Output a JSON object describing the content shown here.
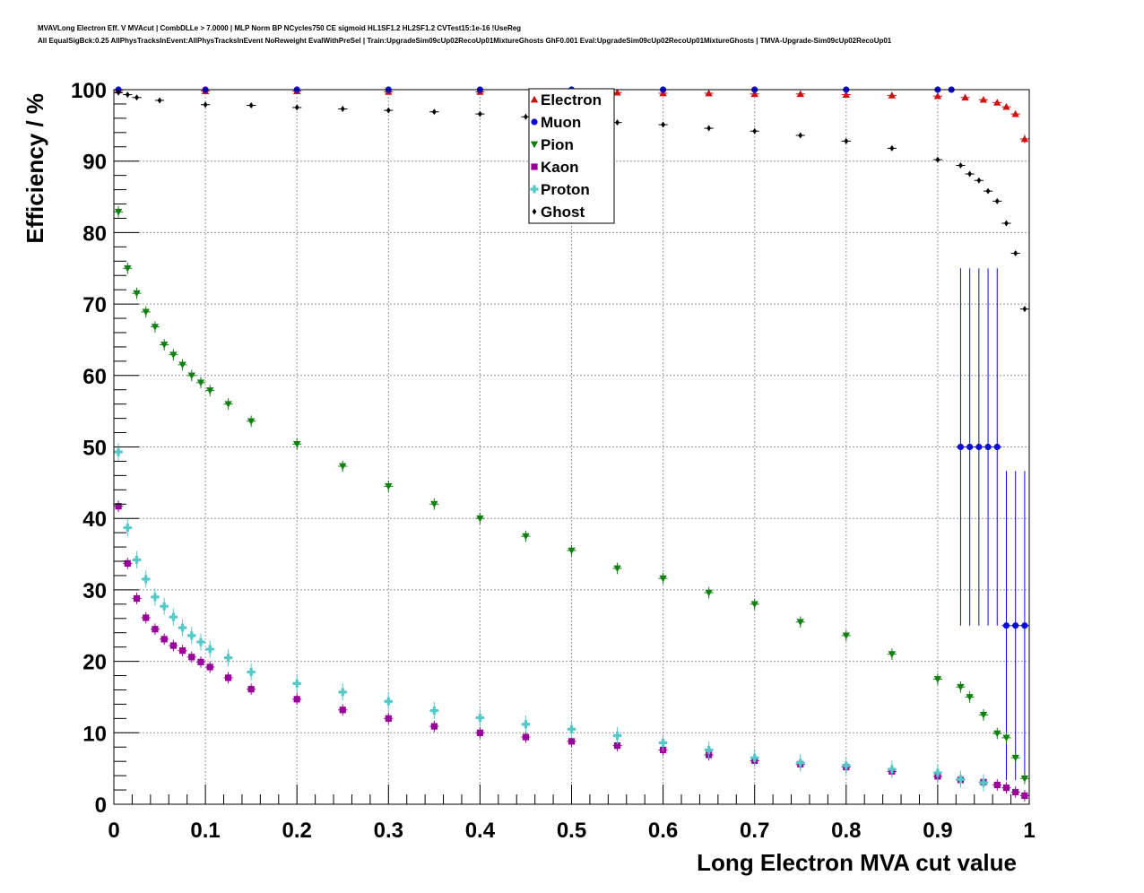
{
  "header": {
    "title_line1": "MVAVLong Electron Eff. V MVAcut | CombDLLe > 7.0000 | MLP Norm BP NCycles750 CE sigmoid HL1SF1.2 HL2SF1.2 CVTest15:1e-16 !UseReg",
    "title_line2": "All EqualSigBck:0.25 AllPhysTracksInEvent:AllPhysTracksInEvent NoReweight EvalWithPreSel | Train:UpgradeSim09cUp02RecoUp01MixtureGhosts GhF0.001 Eval:UpgradeSim09cUp02RecoUp01MixtureGhosts | TMVA-Upgrade-Sim09cUp02RecoUp01"
  },
  "chart_data": {
    "type": "scatter",
    "xlabel": "Long Electron MVA cut value",
    "ylabel": "Efficiency / %",
    "xlim": [
      0,
      1
    ],
    "ylim": [
      0,
      100
    ],
    "x_ticks": [
      "0",
      "0.1",
      "0.2",
      "0.3",
      "0.4",
      "0.5",
      "0.6",
      "0.7",
      "0.8",
      "0.9",
      "1"
    ],
    "y_ticks": [
      "0",
      "10",
      "20",
      "30",
      "40",
      "50",
      "60",
      "70",
      "80",
      "90",
      "100"
    ],
    "grid": true,
    "legend_position": "top-center",
    "x_bin_width": 0.01,
    "series": [
      {
        "name": "Electron",
        "color": "#d01010",
        "marker": "triangle-up",
        "x": [
          0.005,
          0.1,
          0.2,
          0.3,
          0.4,
          0.5,
          0.55,
          0.6,
          0.65,
          0.7,
          0.75,
          0.8,
          0.85,
          0.9,
          0.93,
          0.95,
          0.965,
          0.975,
          0.985,
          0.995
        ],
        "y": [
          99.9,
          99.8,
          99.8,
          99.7,
          99.7,
          99.6,
          99.6,
          99.5,
          99.5,
          99.4,
          99.4,
          99.3,
          99.2,
          99.1,
          98.9,
          98.6,
          98.2,
          97.6,
          96.6,
          93.1
        ],
        "err": [
          0.2,
          0.2,
          0.2,
          0.2,
          0.2,
          0.2,
          0.2,
          0.2,
          0.2,
          0.2,
          0.2,
          0.2,
          0.2,
          0.2,
          0.3,
          0.3,
          0.3,
          0.3,
          0.4,
          0.6
        ]
      },
      {
        "name": "Muon",
        "color": "#0a0ae0",
        "marker": "circle",
        "x": [
          0.005,
          0.1,
          0.2,
          0.3,
          0.4,
          0.5,
          0.6,
          0.7,
          0.8,
          0.9,
          0.915,
          0.925,
          0.935,
          0.945,
          0.955,
          0.965,
          0.975,
          0.985,
          0.995
        ],
        "y": [
          100,
          100,
          100,
          100,
          100,
          100,
          100,
          100,
          100,
          100,
          100,
          50,
          50,
          50,
          50,
          50,
          25,
          25,
          25
        ],
        "err": [
          0,
          0,
          0,
          0,
          0,
          0,
          0,
          0,
          0,
          0,
          0,
          25,
          25,
          25,
          25,
          25,
          21.65,
          21.65,
          21.65
        ]
      },
      {
        "name": "Pion",
        "color": "#108010",
        "marker": "triangle-down",
        "x": [
          0.005,
          0.015,
          0.025,
          0.035,
          0.045,
          0.055,
          0.065,
          0.075,
          0.085,
          0.095,
          0.105,
          0.125,
          0.15,
          0.2,
          0.25,
          0.3,
          0.35,
          0.4,
          0.45,
          0.5,
          0.55,
          0.6,
          0.65,
          0.7,
          0.75,
          0.8,
          0.85,
          0.9,
          0.925,
          0.935,
          0.95,
          0.965,
          0.975,
          0.985,
          0.995
        ],
        "y": [
          82.9,
          75,
          71.5,
          68.9,
          66.8,
          64.3,
          62.9,
          61.5,
          60,
          59,
          57.9,
          56,
          53.6,
          50.4,
          47.3,
          44.5,
          42,
          40,
          37.5,
          35.5,
          33,
          31.6,
          29.6,
          28,
          25.5,
          23.6,
          21,
          17.5,
          16.4,
          15,
          12.5,
          9.9,
          9.3,
          6.5,
          3.6
        ],
        "err": [
          0.8,
          0.8,
          0.8,
          0.8,
          0.8,
          0.8,
          0.8,
          0.8,
          0.8,
          0.8,
          0.8,
          0.8,
          0.8,
          0.8,
          0.8,
          0.8,
          0.8,
          0.8,
          0.8,
          0.8,
          0.8,
          0.8,
          0.8,
          0.8,
          0.8,
          0.8,
          0.8,
          0.8,
          0.8,
          0.8,
          0.8,
          0.8,
          0.8,
          0.8,
          0.8
        ]
      },
      {
        "name": "Kaon",
        "color": "#990099",
        "marker": "square",
        "x": [
          0.005,
          0.015,
          0.025,
          0.035,
          0.045,
          0.055,
          0.065,
          0.075,
          0.085,
          0.095,
          0.105,
          0.125,
          0.15,
          0.2,
          0.25,
          0.3,
          0.35,
          0.4,
          0.45,
          0.5,
          0.55,
          0.6,
          0.65,
          0.7,
          0.75,
          0.8,
          0.85,
          0.9,
          0.925,
          0.95,
          0.965,
          0.975,
          0.985,
          0.995
        ],
        "y": [
          41.7,
          33.7,
          28.8,
          26.1,
          24.5,
          23.1,
          22.2,
          21.5,
          20.6,
          19.9,
          19.2,
          17.7,
          16.1,
          14.7,
          13.2,
          12,
          10.9,
          10,
          9.4,
          8.8,
          8.2,
          7.6,
          6.9,
          6.1,
          5.6,
          5.2,
          4.6,
          3.9,
          3.4,
          3.1,
          2.7,
          2.3,
          1.7,
          1.2
        ],
        "err": [
          0.8,
          0.8,
          0.8,
          0.8,
          0.8,
          0.8,
          0.8,
          0.8,
          0.8,
          0.8,
          0.8,
          0.8,
          0.8,
          0.8,
          0.8,
          0.8,
          0.8,
          0.8,
          0.8,
          0.8,
          0.8,
          0.8,
          0.8,
          0.8,
          0.8,
          0.8,
          0.8,
          0.8,
          0.8,
          0.8,
          0.8,
          0.8,
          0.8,
          0.8
        ]
      },
      {
        "name": "Proton",
        "color": "#55c8c8",
        "marker": "cross",
        "x": [
          0.005,
          0.015,
          0.025,
          0.035,
          0.045,
          0.055,
          0.065,
          0.075,
          0.085,
          0.095,
          0.105,
          0.125,
          0.15,
          0.2,
          0.25,
          0.3,
          0.35,
          0.4,
          0.45,
          0.5,
          0.55,
          0.6,
          0.65,
          0.7,
          0.75,
          0.8,
          0.85,
          0.9,
          0.925,
          0.95
        ],
        "y": [
          49.3,
          38.7,
          34.2,
          31.5,
          29,
          27.7,
          26.2,
          24.7,
          23.6,
          22.7,
          21.7,
          20.5,
          18.5,
          16.9,
          15.7,
          14.4,
          13.1,
          12.1,
          11.2,
          10.5,
          9.6,
          8.6,
          7.6,
          6.5,
          5.8,
          5.4,
          4.9,
          4.4,
          3.5,
          3
        ],
        "err": [
          1.2,
          1.2,
          1.2,
          1.2,
          1.2,
          1.2,
          1.2,
          1.2,
          1.2,
          1.2,
          1.2,
          1.2,
          1.2,
          1.2,
          1.2,
          1.2,
          1.2,
          1.2,
          1.2,
          1.2,
          1.2,
          1.2,
          1.2,
          1.2,
          1.2,
          1.2,
          1.2,
          1.2,
          1.2,
          1.2
        ]
      },
      {
        "name": "Ghost",
        "color": "#000000",
        "marker": "diamond",
        "x": [
          0.005,
          0.015,
          0.025,
          0.05,
          0.1,
          0.15,
          0.2,
          0.25,
          0.3,
          0.35,
          0.4,
          0.45,
          0.5,
          0.55,
          0.6,
          0.65,
          0.7,
          0.75,
          0.8,
          0.85,
          0.9,
          0.925,
          0.935,
          0.945,
          0.955,
          0.965,
          0.975,
          0.985,
          0.995
        ],
        "y": [
          99.6,
          99.3,
          98.9,
          98.5,
          97.9,
          97.8,
          97.5,
          97.3,
          97.1,
          96.9,
          96.6,
          96.2,
          95.8,
          95.4,
          95.1,
          94.6,
          94.2,
          93.6,
          92.8,
          91.8,
          90.2,
          89.4,
          88.2,
          87.3,
          85.8,
          84.4,
          81.3,
          77.1,
          69.3
        ],
        "err": [
          0.1,
          0.1,
          0.1,
          0.1,
          0.1,
          0.1,
          0.1,
          0.1,
          0.1,
          0.1,
          0.1,
          0.1,
          0.1,
          0.1,
          0.1,
          0.1,
          0.1,
          0.1,
          0.1,
          0.1,
          0.1,
          0.1,
          0.1,
          0.1,
          0.1,
          0.1,
          0.1,
          0.1,
          0.1
        ]
      }
    ]
  }
}
